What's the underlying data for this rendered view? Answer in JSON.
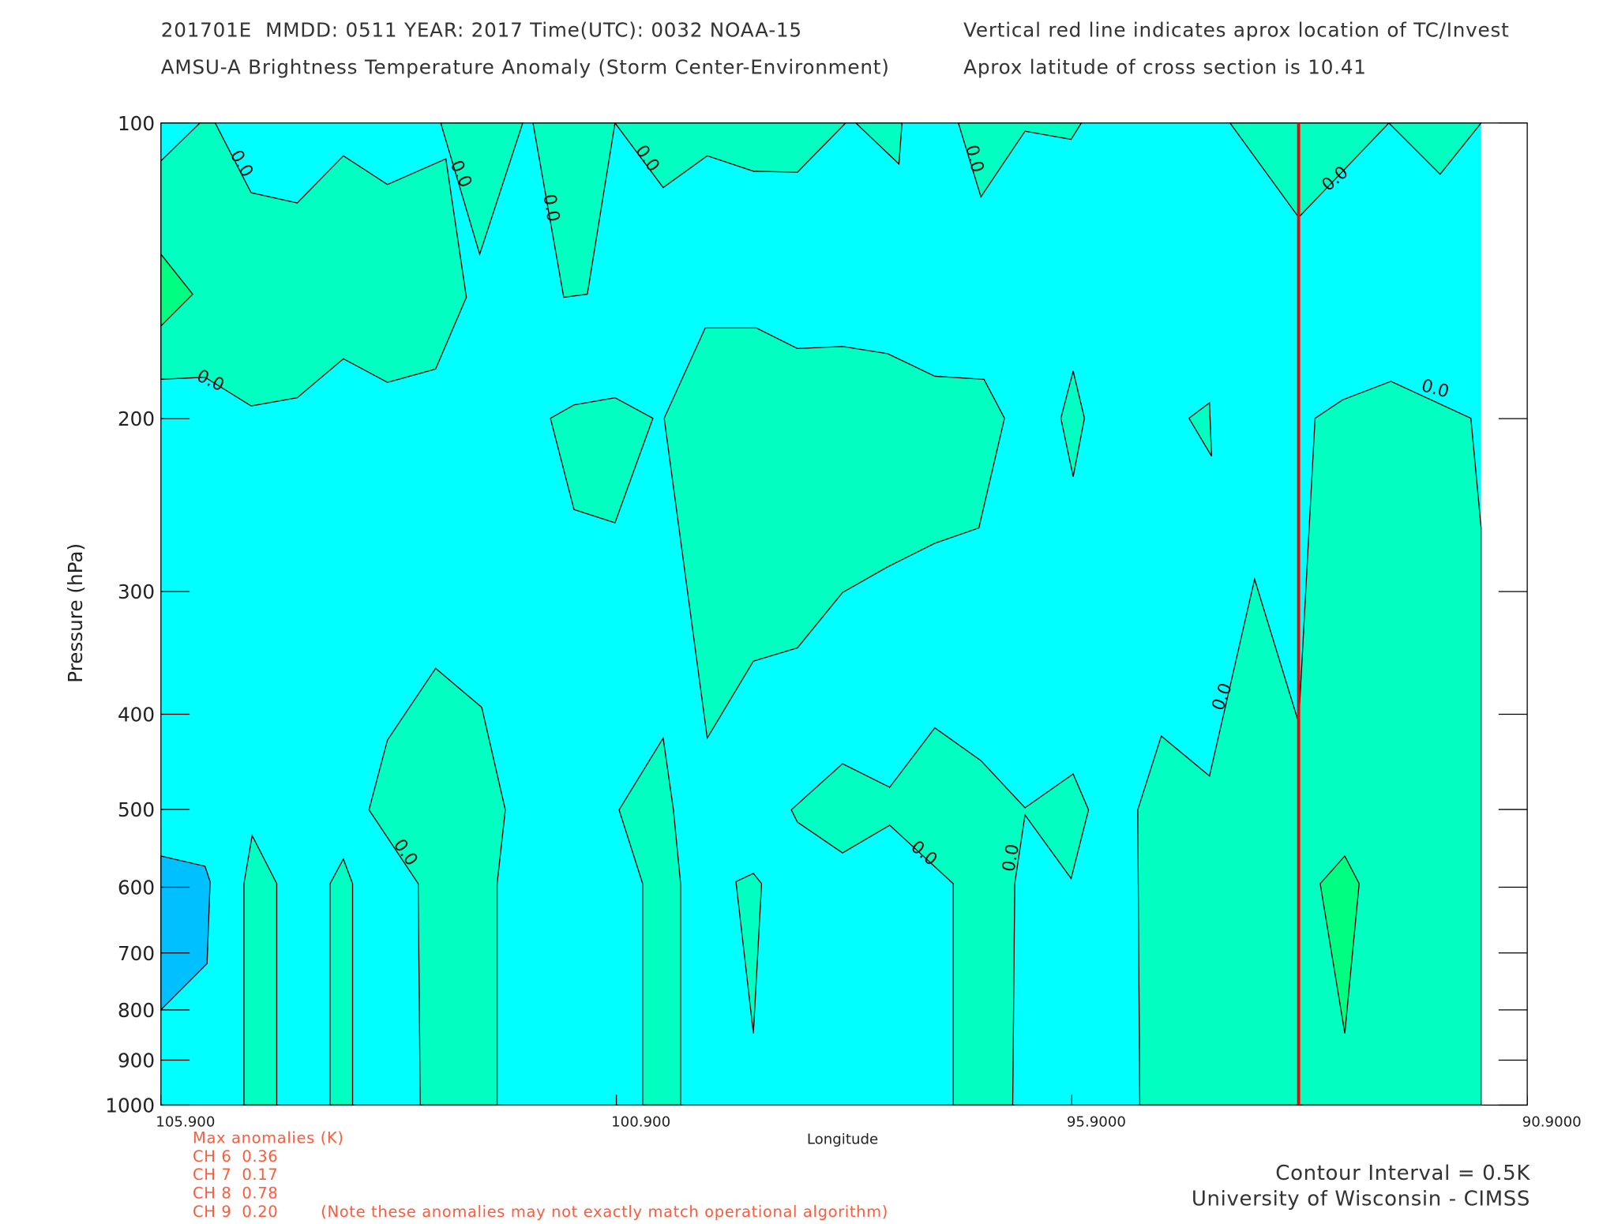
{
  "chart_data": {
    "type": "contour",
    "header": {
      "left": [
        "201701E  MMDD: 0511 YEAR: 2017 Time(UTC): 0032 NOAA-15",
        "AMSU-A Brightness Temperature Anomaly (Storm Center-Environment)"
      ],
      "right": [
        "Vertical red line indicates aprox location of TC/Invest",
        "Aprox latitude of cross section is 10.41"
      ]
    },
    "x_label": "Longitude",
    "y_label": "Pressure (hPa)",
    "xlim": [
      105.9,
      90.9
    ],
    "xticks": [
      {
        "value": 105.9,
        "label": "105.900"
      },
      {
        "value": 100.9,
        "label": "100.900"
      },
      {
        "value": 95.9,
        "label": "95.9000"
      },
      {
        "value": 90.9,
        "label": "90.9000"
      }
    ],
    "ylim": [
      100,
      1000
    ],
    "yticks": [
      100,
      200,
      300,
      400,
      500,
      600,
      700,
      800,
      900,
      1000
    ],
    "y_log": true,
    "tc_longitude": 93.41,
    "tc_color": "#ff0000",
    "contour_labels": [
      "0.0",
      "0.0",
      "0.0",
      "0.0",
      "0.0",
      "0.0",
      "0.0",
      "0.0",
      "0.0",
      "0.0",
      "0.0",
      "0.0"
    ],
    "max_anomalies": {
      "title": "Max anomalies (K)",
      "rows": [
        {
          "channel": "CH 6",
          "value": 0.36
        },
        {
          "channel": "CH 7",
          "value": 0.17
        },
        {
          "channel": "CH 8",
          "value": 0.78
        },
        {
          "channel": "CH 9",
          "value": 0.2,
          "value_label": "0.20"
        }
      ],
      "note": "(Note these anomalies may not exactly match operational algorithm)"
    },
    "footer": [
      "Contour Interval = 0.5K",
      "University of Wisconsin - CIMSS"
    ]
  }
}
